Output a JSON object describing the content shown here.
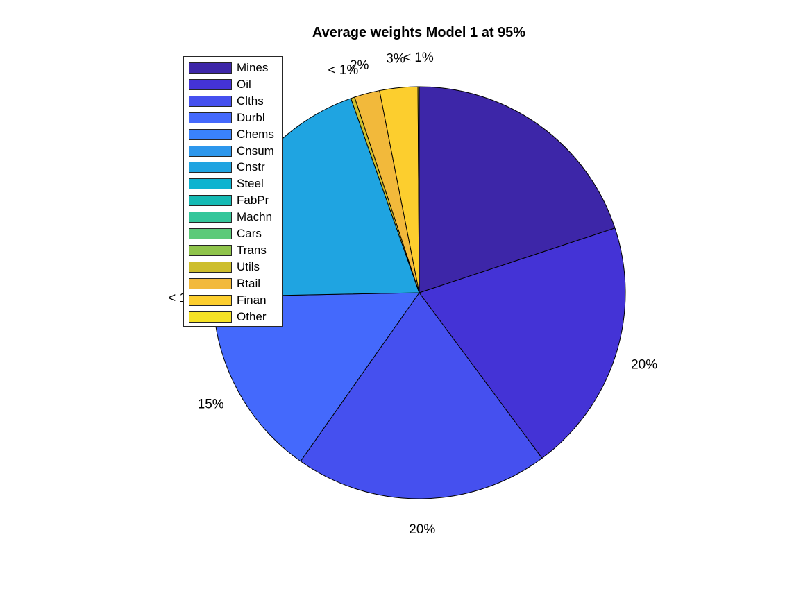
{
  "chart_data": {
    "type": "pie",
    "title": "Average weights Model 1 at 95%",
    "legend_position": "top-left",
    "slices": [
      {
        "name": "Mines",
        "value": 20,
        "label": "",
        "color": "#3d26a8"
      },
      {
        "name": "Oil",
        "value": 20,
        "label": "20%",
        "color": "#4433d6"
      },
      {
        "name": "Clths",
        "value": 20,
        "label": "20%",
        "color": "#4550ef"
      },
      {
        "name": "Durbl",
        "value": 15,
        "label": "15%",
        "color": "#4469fc"
      },
      {
        "name": "Chems",
        "value": 0,
        "label": "< 1%",
        "color": "#3a82fc"
      },
      {
        "name": "Cnsum",
        "value": 0,
        "label": "",
        "color": "#2d97ec"
      },
      {
        "name": "Cnstr",
        "value": 20,
        "label": "20%",
        "color": "#1fa4e1"
      },
      {
        "name": "Steel",
        "value": 0,
        "label": "",
        "color": "#0cb3d0"
      },
      {
        "name": "FabPr",
        "value": 0,
        "label": "",
        "color": "#15bab4"
      },
      {
        "name": "Machn",
        "value": 0,
        "label": "",
        "color": "#34c69a"
      },
      {
        "name": "Cars",
        "value": 0,
        "label": "",
        "color": "#5cca79"
      },
      {
        "name": "Trans",
        "value": 0,
        "label": "",
        "color": "#8fc44b"
      },
      {
        "name": "Utils",
        "value": 0.3,
        "label": "< 1%",
        "color": "#cdbe2c"
      },
      {
        "name": "Rtail",
        "value": 2,
        "label": "2%",
        "color": "#f2b93b"
      },
      {
        "name": "Finan",
        "value": 3,
        "label": "3%",
        "color": "#fcce2e"
      },
      {
        "name": "Other",
        "value": 0.1,
        "label": "< 1%",
        "color": "#f5e225"
      }
    ]
  }
}
